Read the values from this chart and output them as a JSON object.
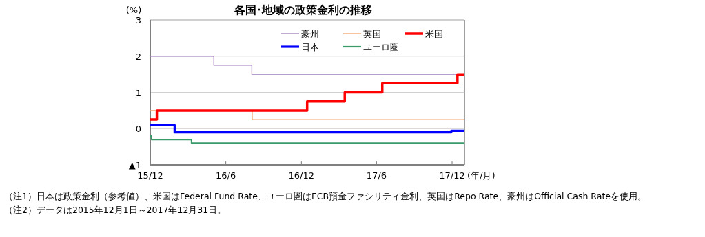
{
  "chart_data": {
    "type": "step",
    "title": "各国･地域の政策金利の推移",
    "ylabel": "(%)",
    "xlabel": "(年/月)",
    "xlim": [
      "2015-12-01",
      "2017-12-31"
    ],
    "xticks": [
      {
        "value": "2015-12-01",
        "label": "15/12"
      },
      {
        "value": "2016-06-01",
        "label": "16/6"
      },
      {
        "value": "2016-12-01",
        "label": "16/12"
      },
      {
        "value": "2017-06-01",
        "label": "17/6"
      },
      {
        "value": "2017-12-01",
        "label": "17/12"
      }
    ],
    "ylim": [
      -1,
      3
    ],
    "yticks": [
      {
        "value": -1,
        "label": "▲1"
      },
      0,
      1,
      2,
      3
    ],
    "grid": "y",
    "legend": "top right",
    "series": [
      {
        "name": "豪州",
        "color": "#9b7fc0",
        "x": [
          "2015-12-01",
          "2016-05-03",
          "2016-08-03",
          "2017-12-31"
        ],
        "values": [
          2,
          1.75,
          1.5,
          1.5
        ]
      },
      {
        "name": "英国",
        "color": "#f4a46a",
        "x": [
          "2015-12-01",
          "2016-08-04",
          "2017-12-31"
        ],
        "values": [
          0.5,
          0.25,
          0.25
        ]
      },
      {
        "name": "米国",
        "color": "#ff0000",
        "x": [
          "2015-12-01",
          "2015-12-17",
          "2016-12-15",
          "2017-03-16",
          "2017-06-15",
          "2017-12-14",
          "2017-12-31"
        ],
        "values": [
          0.25,
          0.5,
          0.75,
          1,
          1.25,
          1.5,
          1.5
        ]
      },
      {
        "name": "日本",
        "color": "#0000ff",
        "x": [
          "2015-12-01",
          "2016-01-29",
          "2017-11-29",
          "2017-12-31"
        ],
        "values": [
          0.1,
          -0.1,
          -0.06,
          -0.06
        ]
      },
      {
        "name": "ユーロ圏",
        "color": "#3a9a6a",
        "x": [
          "2015-12-01",
          "2015-12-04",
          "2016-03-10",
          "2017-12-31"
        ],
        "values": [
          -0.2,
          -0.3,
          -0.4,
          -0.4
        ]
      }
    ],
    "annotations": [
      "（注1）日本は政策金利（参考値）、米国はFederal Fund Rate、ユーロ圏はECB預金ファシリティ金利、英国はRepo Rate、豪州はOfficial Cash Rateを使用。",
      "（注2）データは2015年12月1日～2017年12月31日。"
    ]
  }
}
